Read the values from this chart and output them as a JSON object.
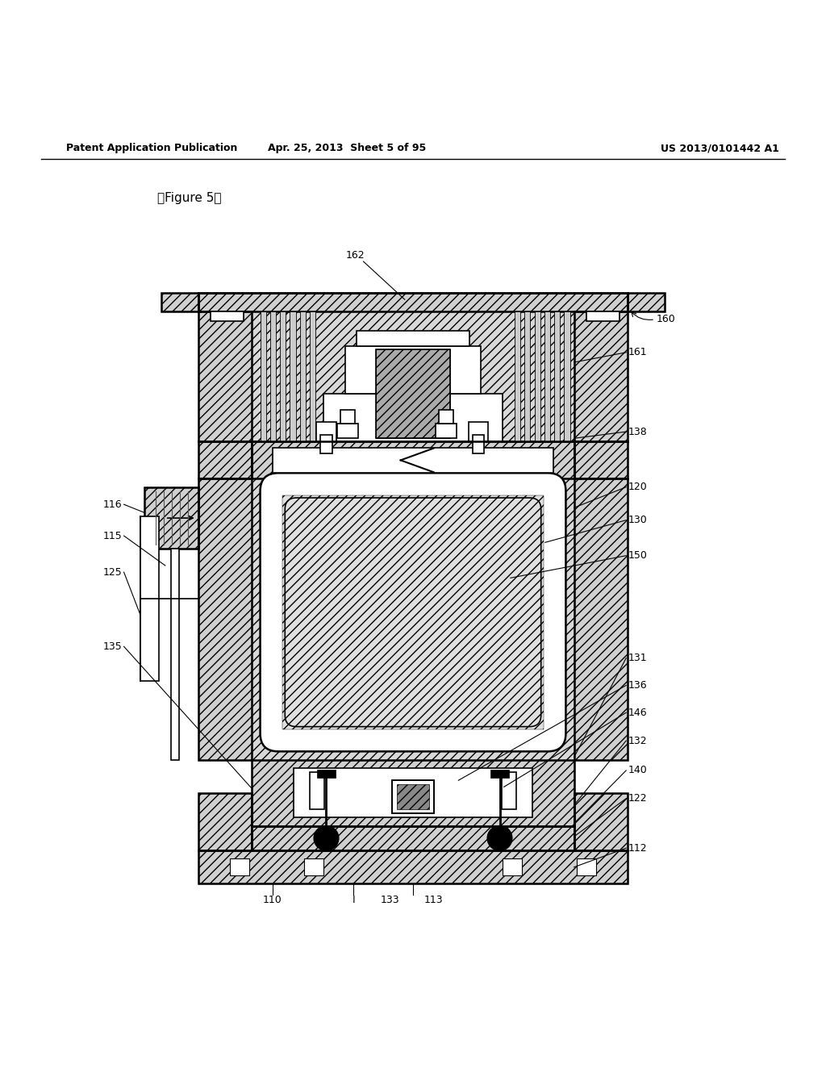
{
  "bg_color": "#ffffff",
  "line_color": "#000000",
  "header_left": "Patent Application Publication",
  "header_mid": "Apr. 25, 2013  Sheet 5 of 95",
  "header_right": "US 2013/0101442 A1",
  "figure_label": "【Figure 5】"
}
